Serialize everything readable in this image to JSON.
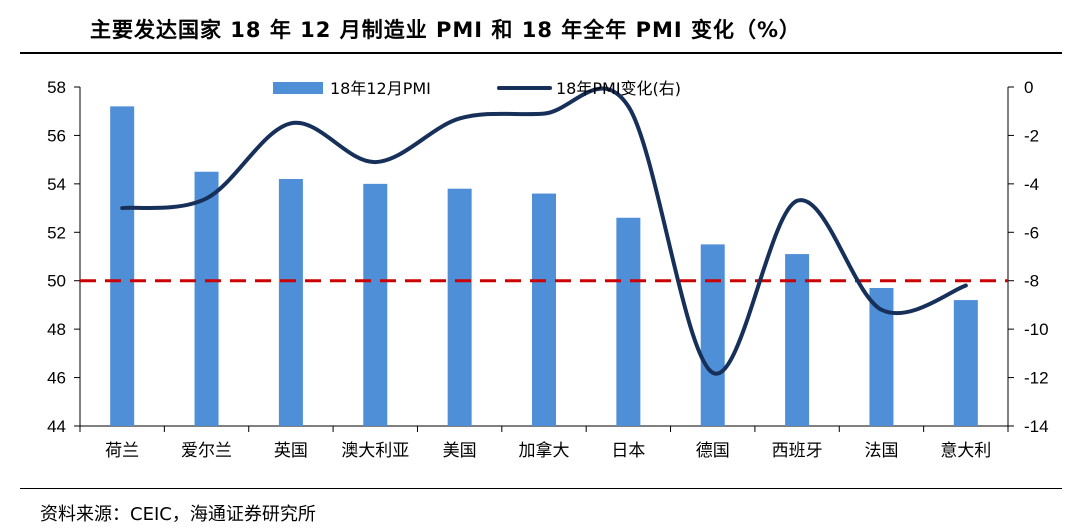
{
  "title": "主要发达国家 18 年 12 月制造业 PMI 和 18 年全年 PMI 变化（%）",
  "source": "资料来源：CEIC，海通证券研究所",
  "colors": {
    "bar": "#4f8fd8",
    "line": "#17305a",
    "reference": "#cc0000"
  },
  "chart_data": {
    "type": "bar",
    "categories": [
      "荷兰",
      "爱尔兰",
      "英国",
      "澳大利亚",
      "美国",
      "加拿大",
      "日本",
      "德国",
      "西班牙",
      "法国",
      "意大利"
    ],
    "series": [
      {
        "name": "18年12月PMI",
        "type": "bar",
        "axis": "left",
        "values": [
          57.2,
          54.5,
          54.2,
          54.0,
          53.8,
          53.6,
          52.6,
          51.5,
          51.1,
          49.7,
          49.2
        ]
      },
      {
        "name": "18年PMI变化(右)",
        "type": "line",
        "axis": "right",
        "values": [
          -5.0,
          -4.6,
          -1.5,
          -3.1,
          -1.3,
          -1.1,
          -0.8,
          -11.8,
          -4.7,
          -9.2,
          -8.2
        ]
      }
    ],
    "y_left": {
      "min": 44,
      "max": 58,
      "ticks": [
        "44",
        "46",
        "48",
        "50",
        "52",
        "54",
        "56",
        "58"
      ]
    },
    "y_right": {
      "min": -14,
      "max": 0,
      "ticks": [
        "-14",
        "-12",
        "-10",
        "-8",
        "-6",
        "-4",
        "-2",
        "0"
      ]
    },
    "reference_line": {
      "axis": "left",
      "value": 50,
      "style": "dashed"
    },
    "legend_position": "top",
    "grid": false
  }
}
